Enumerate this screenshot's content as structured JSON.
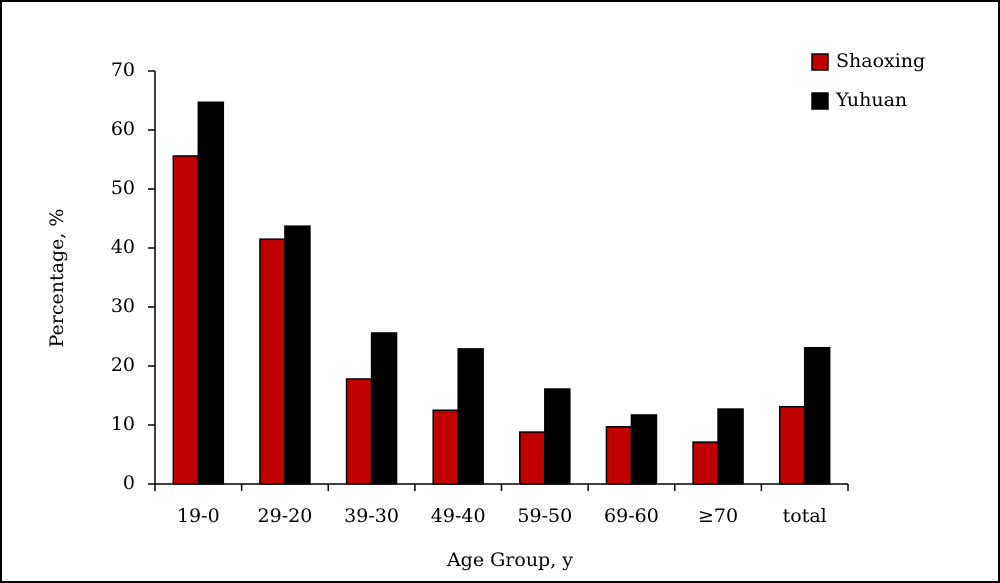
{
  "chart_data": {
    "type": "bar",
    "x_label": "Age Group, y",
    "y_label": "Percentage, %",
    "categories": [
      "19-0",
      "29-20",
      "39-30",
      "49-40",
      "59-50",
      "69-60",
      "≥70",
      "total"
    ],
    "series": [
      {
        "name": "Shaoxing",
        "color": "#c00000",
        "values": [
          55.6,
          41.5,
          17.8,
          12.5,
          8.8,
          9.7,
          7.1,
          13.1
        ]
      },
      {
        "name": "Yuhuan",
        "color": "#000000",
        "values": [
          64.7,
          43.7,
          25.6,
          22.9,
          16.1,
          11.7,
          12.7,
          23.1
        ]
      }
    ],
    "ylim": [
      0,
      70
    ],
    "yticks": [
      0,
      10,
      20,
      30,
      40,
      50,
      60,
      70
    ],
    "legend": "top-right"
  }
}
